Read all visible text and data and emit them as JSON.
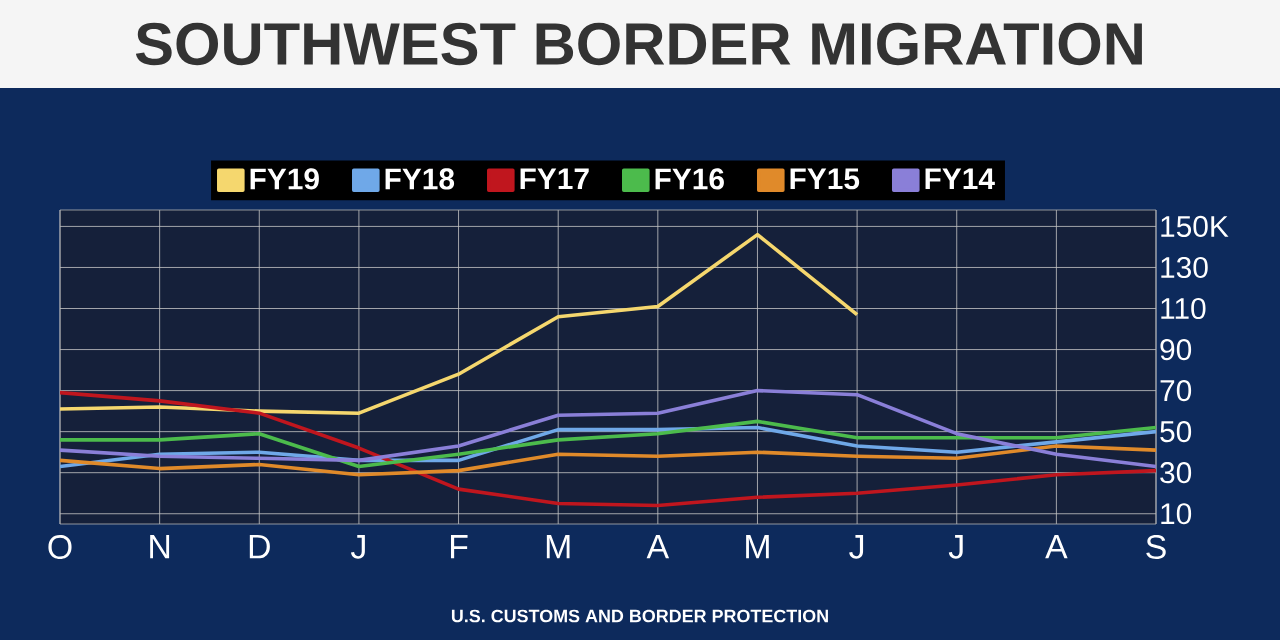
{
  "chart_data": {
    "type": "line",
    "title": "SOUTHWEST BORDER MIGRATION",
    "annotations": [
      "U.S. CUSTOMS AND BORDER PROTECTION"
    ],
    "categories": [
      "O",
      "N",
      "D",
      "J",
      "F",
      "M",
      "A",
      "M",
      "J",
      "J",
      "A",
      "S"
    ],
    "ylim": [
      5,
      158
    ],
    "yticks": [
      10,
      30,
      50,
      70,
      90,
      110,
      130,
      {
        "value": 150,
        "label": "150K"
      }
    ],
    "grid": true,
    "legend": "top",
    "series": [
      {
        "name": "FY19",
        "color": "#f5d76e",
        "values": [
          61,
          62,
          60,
          59,
          78,
          106,
          111,
          146,
          107,
          null,
          null,
          null
        ]
      },
      {
        "name": "FY18",
        "color": "#6fa8e8",
        "values": [
          33,
          39,
          40,
          36,
          36,
          51,
          51,
          52,
          43,
          40,
          45,
          50
        ]
      },
      {
        "name": "FY17",
        "color": "#c0161e",
        "values": [
          69,
          65,
          59,
          42,
          22,
          15,
          14,
          18,
          20,
          24,
          29,
          31
        ]
      },
      {
        "name": "FY16",
        "color": "#4cbb4c",
        "values": [
          46,
          46,
          49,
          33,
          39,
          46,
          49,
          55,
          47,
          47,
          47,
          52
        ]
      },
      {
        "name": "FY15",
        "color": "#e08a2a",
        "values": [
          36,
          32,
          34,
          29,
          31,
          39,
          38,
          40,
          38,
          37,
          43,
          41
        ]
      },
      {
        "name": "FY14",
        "color": "#8a7fd8",
        "values": [
          41,
          38,
          37,
          36,
          43,
          58,
          59,
          70,
          68,
          49,
          39,
          33
        ]
      }
    ]
  }
}
